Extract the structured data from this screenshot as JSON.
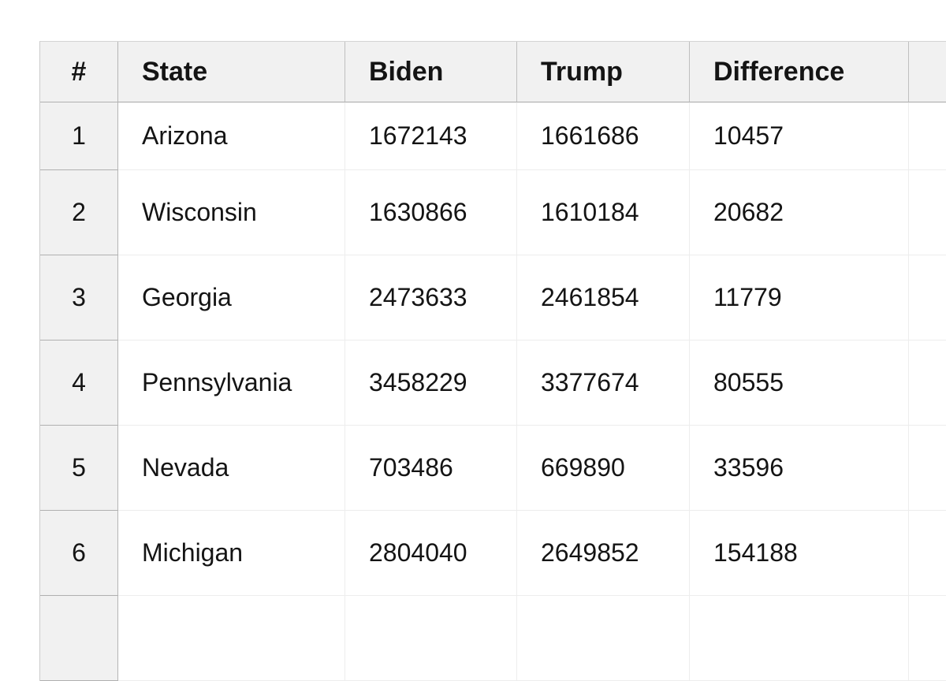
{
  "page": {
    "background_color": "#ffffff",
    "header_bg_color": "#f1f1f1",
    "row_number_bg_color": "#f1f1f1",
    "dark_border_color": "#b0b0b0",
    "light_border_color": "#ededed",
    "text_color": "#141414"
  },
  "table": {
    "header": {
      "index_label": "#",
      "state_label": "State",
      "biden_label": "Biden",
      "trump_label": "Trump",
      "difference_label": "Difference",
      "extra_label": ""
    },
    "rows": [
      {
        "index": "1",
        "state": "Arizona",
        "biden": "1672143",
        "trump": "1661686",
        "difference": "10457"
      },
      {
        "index": "2",
        "state": "Wisconsin",
        "biden": "1630866",
        "trump": "1610184",
        "difference": "20682"
      },
      {
        "index": "3",
        "state": "Georgia",
        "biden": "2473633",
        "trump": "2461854",
        "difference": "11779"
      },
      {
        "index": "4",
        "state": "Pennsylvania",
        "biden": "3458229",
        "trump": "3377674",
        "difference": "80555"
      },
      {
        "index": "5",
        "state": "Nevada",
        "biden": "703486",
        "trump": "669890",
        "difference": "33596"
      },
      {
        "index": "6",
        "state": "Michigan",
        "biden": "2804040",
        "trump": "2649852",
        "difference": "154188"
      }
    ]
  },
  "chart_data": {
    "type": "table",
    "columns": [
      "#",
      "State",
      "Biden",
      "Trump",
      "Difference"
    ],
    "rows": [
      [
        "1",
        "Arizona",
        1672143,
        1661686,
        10457
      ],
      [
        "2",
        "Wisconsin",
        1630866,
        1610184,
        20682
      ],
      [
        "3",
        "Georgia",
        2473633,
        2461854,
        11779
      ],
      [
        "4",
        "Pennsylvania",
        3458229,
        3377674,
        80555
      ],
      [
        "5",
        "Nevada",
        703486,
        669890,
        33596
      ],
      [
        "6",
        "Michigan",
        2804040,
        2649852,
        154188
      ]
    ]
  }
}
